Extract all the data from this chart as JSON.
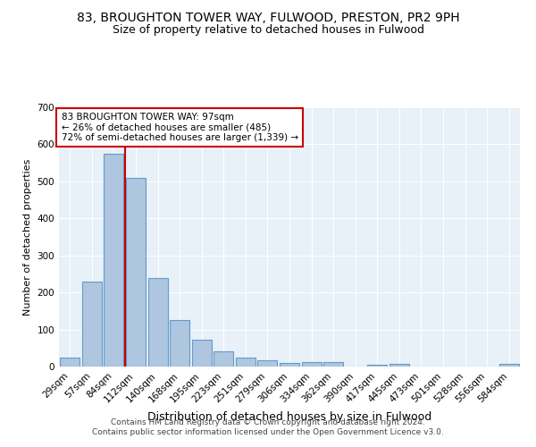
{
  "title1": "83, BROUGHTON TOWER WAY, FULWOOD, PRESTON, PR2 9PH",
  "title2": "Size of property relative to detached houses in Fulwood",
  "xlabel": "Distribution of detached houses by size in Fulwood",
  "ylabel": "Number of detached properties",
  "bar_labels": [
    "29sqm",
    "57sqm",
    "84sqm",
    "112sqm",
    "140sqm",
    "168sqm",
    "195sqm",
    "223sqm",
    "251sqm",
    "279sqm",
    "306sqm",
    "334sqm",
    "362sqm",
    "390sqm",
    "417sqm",
    "445sqm",
    "473sqm",
    "501sqm",
    "528sqm",
    "556sqm",
    "584sqm"
  ],
  "bar_values": [
    25,
    230,
    575,
    510,
    240,
    125,
    72,
    42,
    25,
    17,
    10,
    11,
    11,
    0,
    6,
    8,
    0,
    0,
    0,
    0,
    7
  ],
  "bar_color": "#aec6df",
  "bar_edge_color": "#6699cc",
  "vline_x": 2.5,
  "vline_color": "#cc0000",
  "annotation_text": "83 BROUGHTON TOWER WAY: 97sqm\n← 26% of detached houses are smaller (485)\n72% of semi-detached houses are larger (1,339) →",
  "annotation_box_color": "#ffffff",
  "annotation_box_edge": "#cc0000",
  "ylim": [
    0,
    700
  ],
  "yticks": [
    0,
    100,
    200,
    300,
    400,
    500,
    600,
    700
  ],
  "bg_color": "#e8f0f8",
  "footer": "Contains HM Land Registry data © Crown copyright and database right 2024.\nContains public sector information licensed under the Open Government Licence v3.0.",
  "title1_fontsize": 10,
  "title2_fontsize": 9,
  "xlabel_fontsize": 9,
  "ylabel_fontsize": 8,
  "tick_fontsize": 7.5,
  "footer_fontsize": 6.5
}
